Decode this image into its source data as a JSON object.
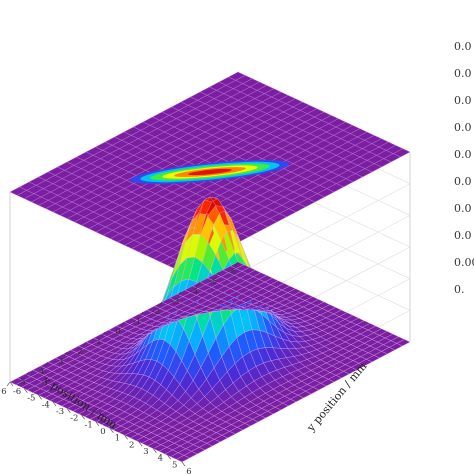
{
  "chart_data": {
    "type": "surface3d",
    "title": "",
    "xlabel": "x position / mm",
    "ylabel": "y position / mm",
    "zlabel": "",
    "x_ticks": [
      "-6",
      "-5",
      "-4",
      "-3",
      "-2",
      "-1",
      "0",
      "1",
      "2",
      "3",
      "4",
      "5",
      "6"
    ],
    "y_ticks": [
      "-6",
      "-5",
      "-4",
      "-3",
      "-2",
      "-1",
      "0",
      "1",
      "2",
      "3",
      "4",
      "5",
      "6"
    ],
    "xlim": [
      -6,
      6
    ],
    "ylim": [
      -6,
      6
    ],
    "surface": {
      "amplitude": 1.0,
      "center_x": 0,
      "center_y": 0,
      "sigma_x": 1.5,
      "sigma_y": 1.5
    },
    "projection": {
      "shown": true,
      "orientation": "elongated diagonal ellipse",
      "plane": "top"
    },
    "colormap": [
      "#7a1fa2",
      "#4b2bd6",
      "#1f5cff",
      "#00c0ff",
      "#00e68a",
      "#7cf000",
      "#ffff00",
      "#ff9a00",
      "#ff2a00",
      "#c40000"
    ],
    "grid": true,
    "colorbar_labels": [
      "0.0",
      "0.0",
      "0.0",
      "0.0",
      "0.0",
      "0.0",
      "0.0",
      "0.0",
      "0.00",
      "0."
    ]
  }
}
